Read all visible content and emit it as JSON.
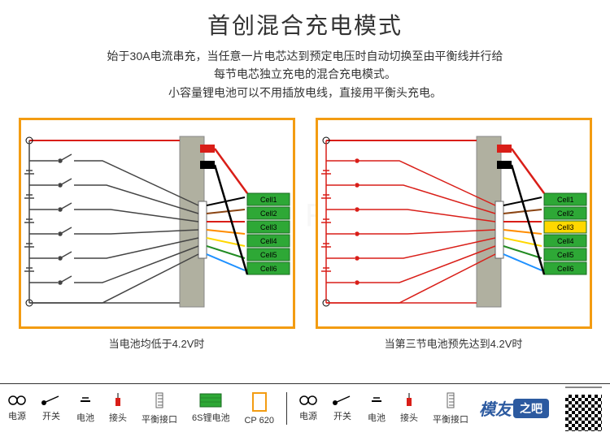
{
  "header": {
    "title": "首创混合充电模式",
    "line1": "始于30A电流串充，当任意一片电芯达到预定电压时自动切换至由平衡线并行给",
    "line2": "每节电芯独立充电的混合充电模式。",
    "line3": "小容量锂电池可以不用插放电线，直接用平衡头充电。"
  },
  "diagram_left": {
    "caption": "当电池均低于4.2V时",
    "frame_color": "#f39c12",
    "cells": [
      "Cell1",
      "Cell2",
      "Cell3",
      "Cell4",
      "Cell5",
      "Cell6"
    ],
    "cell_bg": "#2ea836",
    "cell_text_color": "#000000",
    "board_color": "#b0b0a0",
    "power_line_color": "#d91e18",
    "wire_color": "#444444",
    "balance_colors": [
      "#000000",
      "#8b4513",
      "#d91e18",
      "#ff8c00",
      "#ffd700",
      "#228b22",
      "#1e90ff"
    ],
    "highlight_cell": -1,
    "highlight_color": "#ffd700"
  },
  "diagram_right": {
    "caption": "当第三节电池预先达到4.2V时",
    "frame_color": "#f39c12",
    "cells": [
      "Cell1",
      "Cell2",
      "Cell3",
      "Cell4",
      "Cell5",
      "Cell6"
    ],
    "cell_bg": "#2ea836",
    "cell_text_color": "#000000",
    "board_color": "#b0b0a0",
    "power_line_color": "#d91e18",
    "wire_color": "#d91e18",
    "balance_colors": [
      "#000000",
      "#8b4513",
      "#d91e18",
      "#ff8c00",
      "#ffd700",
      "#228b22",
      "#1e90ff"
    ],
    "highlight_cell": 2,
    "highlight_color": "#ffd700"
  },
  "legend": {
    "items_left": [
      {
        "name": "电源",
        "icon": "power"
      },
      {
        "name": "开关",
        "icon": "switch"
      },
      {
        "name": "电池",
        "icon": "battery"
      },
      {
        "name": "接头",
        "icon": "connector"
      },
      {
        "name": "平衡接口",
        "icon": "balance-port"
      },
      {
        "name": "6S锂电池",
        "icon": "6s-pack"
      },
      {
        "name": "CP 620",
        "icon": "cp620"
      }
    ],
    "items_right": [
      {
        "name": "电源",
        "icon": "power"
      },
      {
        "name": "开关",
        "icon": "switch"
      },
      {
        "name": "电池",
        "icon": "battery"
      },
      {
        "name": "接头",
        "icon": "connector"
      },
      {
        "name": "平衡接口",
        "icon": "balance-port"
      }
    ]
  },
  "logo": {
    "text1": "模友",
    "text2": "之吧",
    "url": "www.moz8.com"
  },
  "colors": {
    "bg": "#ffffff",
    "text": "#333333",
    "frame": "#f39c12",
    "green": "#2ea836",
    "red": "#d91e18",
    "board": "#b0b0a0"
  }
}
